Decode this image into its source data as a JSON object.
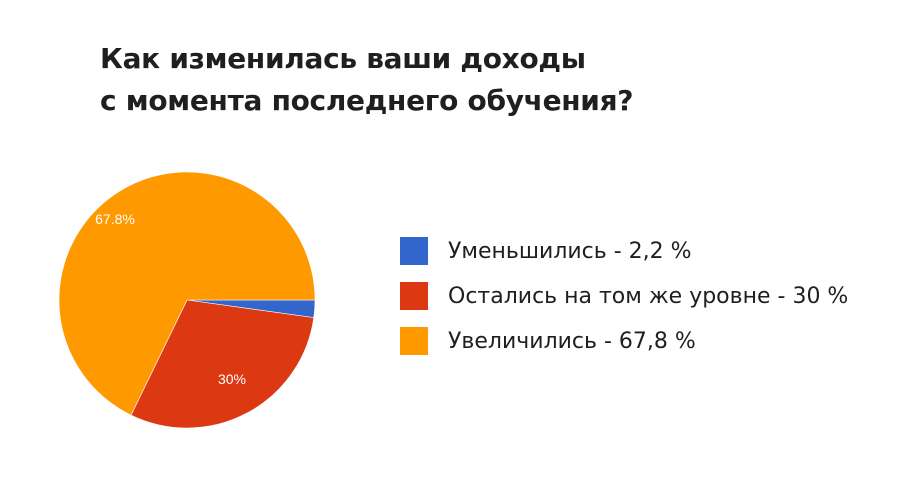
{
  "chart_data": {
    "type": "pie",
    "title": [
      "Как изменилась ваши доходы",
      "с момента последнего обучения?"
    ],
    "slices": [
      {
        "label": "Уменьшились - 2,2 %",
        "value": 2.2,
        "color": "#3366CC",
        "data_label": ""
      },
      {
        "label": "Остались на том же уровне - 30 %",
        "value": 30,
        "color": "#DC3912",
        "data_label": "30%"
      },
      {
        "label": "Увеличились - 67,8 %",
        "value": 67.8,
        "color": "#FF9900",
        "data_label": "67.8%"
      }
    ],
    "start_angle": "3 o'clock, clockwise",
    "legend_position": "right"
  }
}
